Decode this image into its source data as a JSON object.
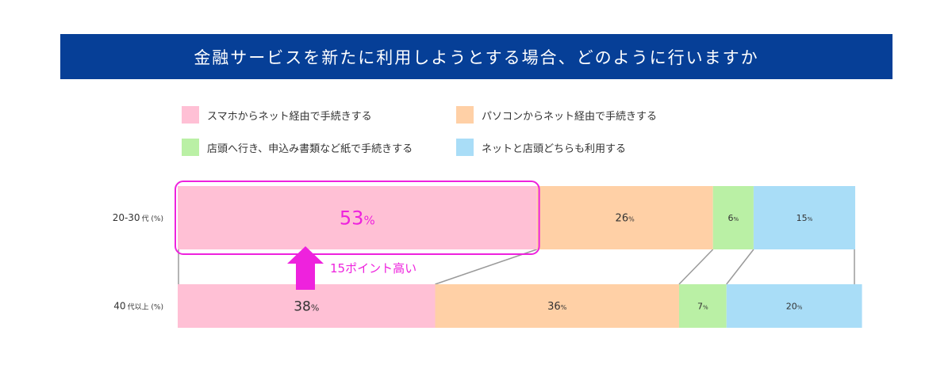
{
  "title": "金融サービスを新たに利用しようとする場合、どのように行いますか",
  "legend": [
    {
      "label": "スマホからネット経由で手続きする",
      "color": "#ffc0d5"
    },
    {
      "label": "パソコンからネット経由で手続きする",
      "color": "#ffd0a6"
    },
    {
      "label": "店頭へ行き、申込み書類など紙で手続きする",
      "color": "#baf0a5"
    },
    {
      "label": "ネットと店頭どちらも利用する",
      "color": "#a9ddf7"
    }
  ],
  "annotation": {
    "text": "15ポイント高い",
    "color": "#ee22dd"
  },
  "chart_data": {
    "type": "bar",
    "orientation": "horizontal",
    "stacked": true,
    "categories": [
      "20-30代(%)",
      "40代以上(%)"
    ],
    "category_display": [
      {
        "main": "20-30",
        "sub": "代 (%)"
      },
      {
        "main": "40",
        "sub": "代以上 (%)"
      }
    ],
    "series": [
      {
        "name": "スマホからネット経由で手続きする",
        "values": [
          53,
          38
        ],
        "color": "#ffc0d5"
      },
      {
        "name": "パソコンからネット経由で手続きする",
        "values": [
          26,
          36
        ],
        "color": "#ffd0a6"
      },
      {
        "name": "店頭へ行き、申込み書類など紙で手続きする",
        "values": [
          6,
          7
        ],
        "color": "#baf0a5"
      },
      {
        "name": "ネットと店頭どちらも利用する",
        "values": [
          15,
          20
        ],
        "color": "#a9ddf7"
      }
    ],
    "value_suffix": "%",
    "xlim": [
      0,
      100
    ],
    "highlight": {
      "series": 0,
      "category": 0
    }
  }
}
